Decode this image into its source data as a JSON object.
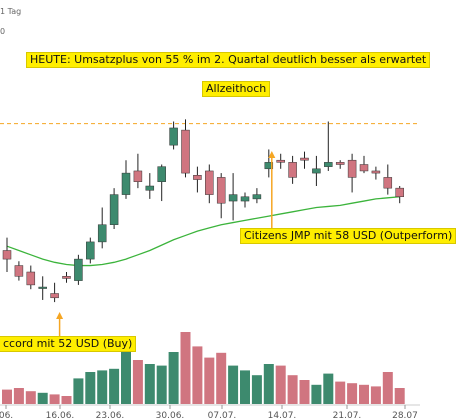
{
  "header": {
    "timeframe_label": "1 Tag",
    "corner_value": "0"
  },
  "annotations": {
    "headline": "HEUTE: Umsatzplus von 55 % im 2. Quartal deutlich besser als erwartet",
    "ath": "Allzeithoch",
    "citizens": "Citizens JMP mit 58 USD (Outperform)",
    "accord": "ccord mit 52 USD (Buy)"
  },
  "chart_data": {
    "type": "candlestick",
    "x_ticks": [
      "06.",
      "16.06.",
      "23.06.",
      "30.06.",
      "07.07.",
      "14.07.",
      "21.07.",
      "28.07"
    ],
    "candles": [
      {
        "o": 54.0,
        "h": 54.6,
        "l": 53.0,
        "c": 53.6,
        "v": 18
      },
      {
        "o": 53.3,
        "h": 53.5,
        "l": 52.6,
        "c": 52.8,
        "v": 20
      },
      {
        "o": 53.0,
        "h": 53.3,
        "l": 52.2,
        "c": 52.4,
        "v": 16
      },
      {
        "o": 52.3,
        "h": 52.8,
        "l": 51.7,
        "c": 52.3,
        "v": 14
      },
      {
        "o": 52.0,
        "h": 52.5,
        "l": 51.6,
        "c": 51.8,
        "v": 12
      },
      {
        "o": 52.8,
        "h": 53.0,
        "l": 52.5,
        "c": 52.7,
        "v": 10
      },
      {
        "o": 52.6,
        "h": 53.8,
        "l": 52.4,
        "c": 53.6,
        "v": 32
      },
      {
        "o": 53.6,
        "h": 54.6,
        "l": 53.4,
        "c": 54.4,
        "v": 40
      },
      {
        "o": 54.4,
        "h": 56.0,
        "l": 54.1,
        "c": 55.2,
        "v": 42
      },
      {
        "o": 55.2,
        "h": 56.9,
        "l": 55.0,
        "c": 56.6,
        "v": 44
      },
      {
        "o": 56.6,
        "h": 58.2,
        "l": 56.4,
        "c": 57.6,
        "v": 75
      },
      {
        "o": 57.7,
        "h": 58.5,
        "l": 56.9,
        "c": 57.2,
        "v": 55
      },
      {
        "o": 56.8,
        "h": 57.6,
        "l": 56.4,
        "c": 57.0,
        "v": 50
      },
      {
        "o": 57.2,
        "h": 58.0,
        "l": 56.3,
        "c": 57.9,
        "v": 48
      },
      {
        "o": 58.9,
        "h": 60.0,
        "l": 58.7,
        "c": 59.7,
        "v": 65
      },
      {
        "o": 59.6,
        "h": 60.1,
        "l": 57.4,
        "c": 57.6,
        "v": 90
      },
      {
        "o": 57.5,
        "h": 57.9,
        "l": 56.7,
        "c": 57.3,
        "v": 72
      },
      {
        "o": 57.7,
        "h": 58.0,
        "l": 56.2,
        "c": 56.6,
        "v": 58
      },
      {
        "o": 57.4,
        "h": 57.6,
        "l": 55.5,
        "c": 56.2,
        "v": 64
      },
      {
        "o": 56.3,
        "h": 57.6,
        "l": 55.4,
        "c": 56.6,
        "v": 48
      },
      {
        "o": 56.3,
        "h": 56.7,
        "l": 56.0,
        "c": 56.5,
        "v": 42
      },
      {
        "o": 56.4,
        "h": 56.9,
        "l": 56.2,
        "c": 56.6,
        "v": 36
      },
      {
        "o": 57.8,
        "h": 58.7,
        "l": 57.4,
        "c": 58.1,
        "v": 50
      },
      {
        "o": 58.2,
        "h": 58.5,
        "l": 57.8,
        "c": 58.1,
        "v": 48
      },
      {
        "o": 58.1,
        "h": 58.4,
        "l": 57.1,
        "c": 57.4,
        "v": 36
      },
      {
        "o": 58.3,
        "h": 58.6,
        "l": 57.8,
        "c": 58.2,
        "v": 30
      },
      {
        "o": 57.6,
        "h": 58.4,
        "l": 57.0,
        "c": 57.8,
        "v": 24
      },
      {
        "o": 57.9,
        "h": 60.0,
        "l": 57.7,
        "c": 58.1,
        "v": 38
      },
      {
        "o": 58.1,
        "h": 58.2,
        "l": 57.8,
        "c": 58.0,
        "v": 28
      },
      {
        "o": 58.2,
        "h": 58.5,
        "l": 56.7,
        "c": 57.4,
        "v": 26
      },
      {
        "o": 58.0,
        "h": 58.4,
        "l": 57.6,
        "c": 57.7,
        "v": 24
      },
      {
        "o": 57.7,
        "h": 57.9,
        "l": 57.3,
        "c": 57.6,
        "v": 22
      },
      {
        "o": 57.4,
        "h": 58.0,
        "l": 56.6,
        "c": 56.9,
        "v": 40
      },
      {
        "o": 56.9,
        "h": 57.0,
        "l": 56.2,
        "c": 56.5,
        "v": 20
      }
    ],
    "moving_average": [
      54.2,
      54.0,
      53.8,
      53.6,
      53.45,
      53.35,
      53.3,
      53.3,
      53.35,
      53.45,
      53.6,
      53.8,
      54.0,
      54.25,
      54.5,
      54.7,
      54.9,
      55.05,
      55.2,
      55.3,
      55.4,
      55.5,
      55.6,
      55.7,
      55.8,
      55.9,
      56.0,
      56.05,
      56.1,
      56.2,
      56.3,
      56.4,
      56.45,
      56.5
    ],
    "ath_level": 59.9,
    "y_range": [
      51.0,
      61.0
    ],
    "volume_range": [
      0,
      100
    ],
    "grid": false
  },
  "colors": {
    "up": "#3d8a6e",
    "down": "#d07580",
    "ma_line": "#3cb43c",
    "ath_line": "#f5a623",
    "arrow": "#f5a623",
    "annotation_bg": "#ffee00"
  }
}
